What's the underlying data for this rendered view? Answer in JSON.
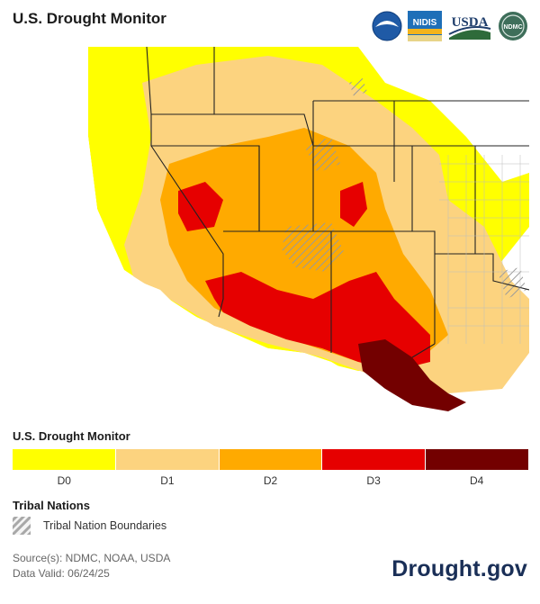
{
  "header": {
    "title": "U.S. Drought Monitor",
    "logos": [
      "noaa-logo",
      "nidis-logo",
      "usda-logo",
      "ndmc-logo"
    ],
    "logo_text": {
      "nidis": "NIDIS",
      "usda": "USDA",
      "ndmc": "NDMC"
    }
  },
  "legend": {
    "title": "U.S. Drought Monitor",
    "categories": [
      {
        "label": "D0",
        "color": "#ffff00"
      },
      {
        "label": "D1",
        "color": "#fcd37f"
      },
      {
        "label": "D2",
        "color": "#ffaa00"
      },
      {
        "label": "D3",
        "color": "#e60000"
      },
      {
        "label": "D4",
        "color": "#730000"
      }
    ]
  },
  "tribal": {
    "title": "Tribal Nations",
    "label": "Tribal Nation Boundaries"
  },
  "footer": {
    "source": "Source(s): NDMC, NOAA, USDA",
    "valid": "Data Valid: 06/24/25",
    "brand": "Drought.gov"
  },
  "colors": {
    "d0": "#ffff00",
    "d1": "#fcd37f",
    "d2": "#ffaa00",
    "d3": "#e60000",
    "d4": "#730000",
    "brand": "#1a2f57"
  }
}
